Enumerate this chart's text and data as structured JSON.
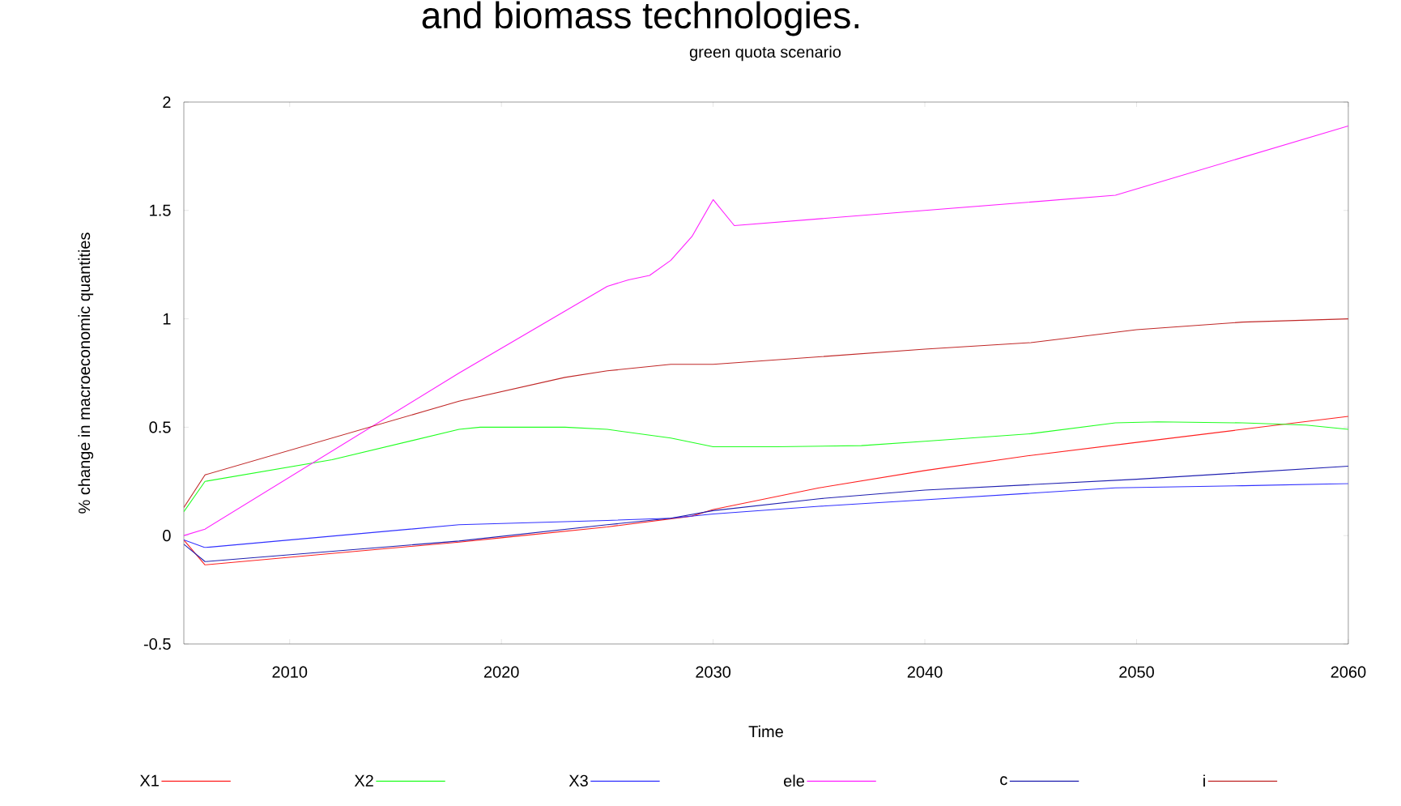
{
  "chart_data": {
    "type": "line",
    "title": "and biomass technologies.",
    "subtitle": "green quota scenario",
    "xlabel": "Time",
    "ylabel": "% change in macroeconomic quantities",
    "xlim": [
      2005,
      2060
    ],
    "xticks": [
      2010,
      2020,
      2030,
      2040,
      2050,
      2060
    ],
    "ylim": [
      -0.5,
      2
    ],
    "yticks": [
      -0.5,
      0,
      0.5,
      1,
      1.5,
      2
    ],
    "grid": false,
    "legend": "bottom",
    "marker": "none",
    "line_style": "solid",
    "series": [
      {
        "name": "X1",
        "color": "#ff2020",
        "x": [
          2005,
          2006,
          2018,
          2020,
          2025,
          2029,
          2030,
          2035,
          2040,
          2045,
          2050,
          2055,
          2060
        ],
        "values": [
          -0.02,
          -0.135,
          -0.03,
          -0.01,
          0.04,
          0.09,
          0.12,
          0.22,
          0.3,
          0.37,
          0.43,
          0.49,
          0.55
        ]
      },
      {
        "name": "X2",
        "color": "#20ff20",
        "x": [
          2005,
          2006,
          2012,
          2018,
          2019,
          2023,
          2025,
          2028,
          2030,
          2033,
          2037,
          2040,
          2045,
          2049,
          2051,
          2055,
          2058,
          2060
        ],
        "values": [
          0.11,
          0.25,
          0.35,
          0.49,
          0.5,
          0.5,
          0.49,
          0.45,
          0.41,
          0.41,
          0.415,
          0.435,
          0.47,
          0.52,
          0.525,
          0.52,
          0.51,
          0.49
        ]
      },
      {
        "name": "X3",
        "color": "#3030ff",
        "x": [
          2005,
          2006,
          2018,
          2025,
          2028,
          2030,
          2035,
          2040,
          2049,
          2055,
          2060
        ],
        "values": [
          -0.02,
          -0.055,
          0.05,
          0.07,
          0.08,
          0.1,
          0.135,
          0.165,
          0.22,
          0.23,
          0.24
        ]
      },
      {
        "name": "ele",
        "color": "#ff20ff",
        "x": [
          2005,
          2006,
          2018,
          2025,
          2026,
          2027,
          2028,
          2029,
          2030,
          2031,
          2040,
          2049,
          2060
        ],
        "values": [
          0,
          0.03,
          0.75,
          1.15,
          1.18,
          1.2,
          1.27,
          1.38,
          1.55,
          1.43,
          1.5,
          1.57,
          1.89
        ]
      },
      {
        "name": "c",
        "color": "#2020b0",
        "x": [
          2005,
          2006,
          2018,
          2025,
          2028,
          2030,
          2035,
          2040,
          2045,
          2050,
          2055,
          2060
        ],
        "values": [
          -0.04,
          -0.12,
          -0.025,
          0.05,
          0.08,
          0.115,
          0.17,
          0.21,
          0.235,
          0.26,
          0.29,
          0.32
        ]
      },
      {
        "name": "i",
        "color": "#c02828",
        "x": [
          2005,
          2006,
          2018,
          2023,
          2025,
          2028,
          2030,
          2040,
          2045,
          2050,
          2055,
          2060
        ],
        "values": [
          0.13,
          0.28,
          0.62,
          0.73,
          0.76,
          0.79,
          0.79,
          0.86,
          0.89,
          0.95,
          0.985,
          1.0
        ]
      }
    ]
  }
}
